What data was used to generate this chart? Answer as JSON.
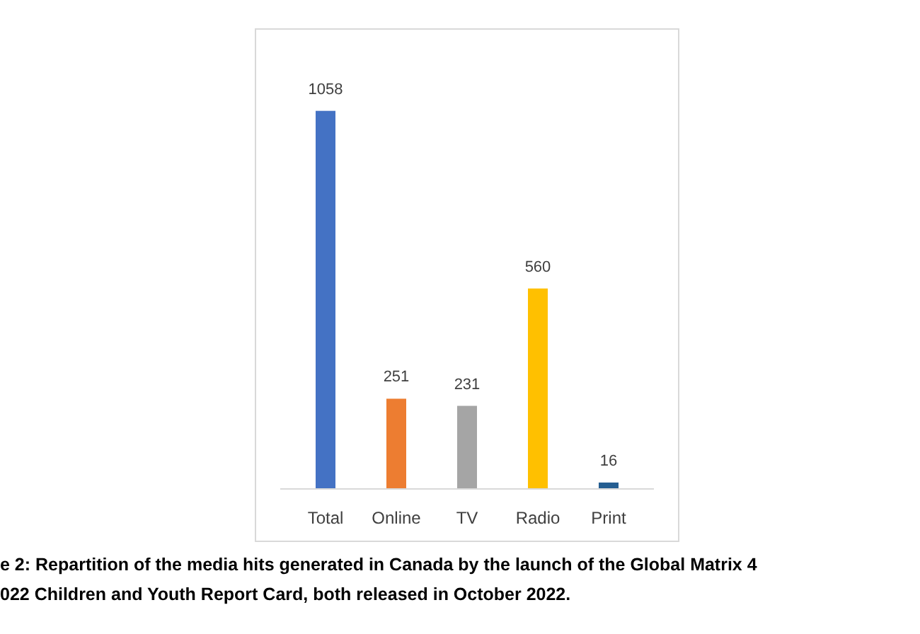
{
  "chart_data": {
    "type": "bar",
    "categories": [
      "Total",
      "Online",
      "TV",
      "Radio",
      "Print"
    ],
    "values": [
      1058,
      251,
      231,
      560,
      16
    ],
    "colors": [
      "#4472c4",
      "#ed7d31",
      "#a5a5a5",
      "#ffc000",
      "#255e91"
    ],
    "data_labels": true,
    "annotations": [
      "e 2: Repartition of the media hits generated in Canada by the launch of the Global Matrix 4",
      "022 Children and Youth Report Card, both released in October 2022."
    ]
  }
}
